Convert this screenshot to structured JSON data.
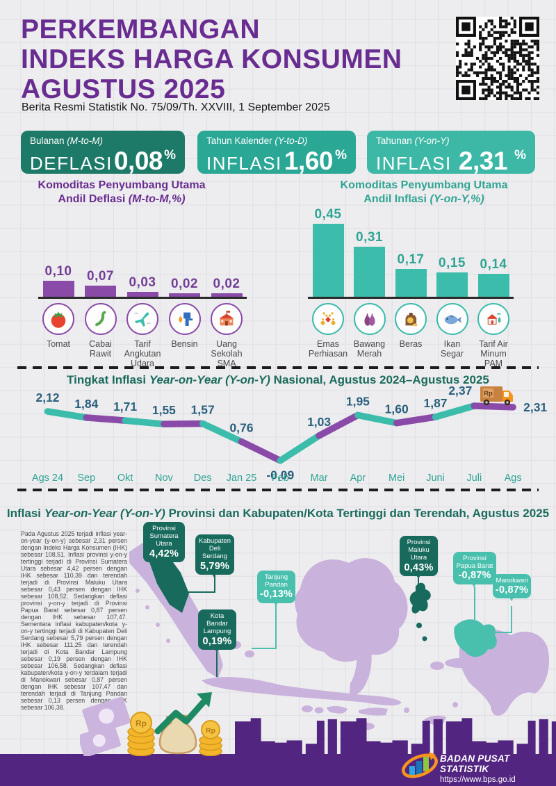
{
  "header": {
    "title_lines": [
      "PERKEMBANGAN",
      "INDEKS HARGA KONSUMEN",
      "AGUSTUS 2025"
    ],
    "subtitle": "Berita Resmi Statistik No. 75/09/Th. XXVIII, 1 September 2025"
  },
  "stat_boxes": [
    {
      "period": "Bulanan ",
      "period_detail": "(M-to-M)",
      "kind": "DEFLASI",
      "value": "0,08",
      "unit": "%",
      "color": "#1e7a68"
    },
    {
      "period": "Tahun Kalender ",
      "period_detail": "(Y-to-D)",
      "kind": "INFLASI",
      "value": "1,60",
      "unit": "%",
      "color": "#2ba795"
    },
    {
      "period": "Tahunan ",
      "period_detail": "(Y-on-Y)",
      "kind": "INFLASI",
      "value": "2,31",
      "unit": "%",
      "color": "#3eb8a6"
    }
  ],
  "deflasi_heading": {
    "line1": "Komoditas Penyumbang Utama",
    "line2_pre": "Andil Deflasi ",
    "line2_italic": "(M-to-M,%)"
  },
  "inflasi_heading": {
    "line1": "Komoditas Penyumbang Utama",
    "line2_pre": "Andil Inflasi ",
    "line2_italic": "(Y-on-Y,%)"
  },
  "chart_data": [
    {
      "type": "bar",
      "id": "andil-deflasi-mtm",
      "title": "Komoditas Penyumbang Utama Andil Deflasi (M-to-M,%)",
      "categories": [
        "Tomat",
        "Cabai Rawit",
        "Tarif Angkutan Udara",
        "Bensin",
        "Uang Sekolah SMA"
      ],
      "values": [
        0.1,
        0.07,
        0.03,
        0.02,
        0.02
      ],
      "value_labels": [
        "0,10",
        "0,07",
        "0,03",
        "0,02",
        "0,02"
      ],
      "icons": [
        "tomato-icon",
        "chili-icon",
        "airplane-icon",
        "fuel-icon",
        "school-icon"
      ],
      "bar_color": "#8a4ba8",
      "label_color": "#733d96",
      "circle_border": "#8a4ba8",
      "ylim": [
        0,
        0.12
      ],
      "grid": false
    },
    {
      "type": "bar",
      "id": "andil-inflasi-yoy",
      "title": "Komoditas Penyumbang Utama Andil Inflasi (Y-on-Y,%)",
      "categories": [
        "Emas Perhiasan",
        "Bawang Merah",
        "Beras",
        "Ikan Segar",
        "Tarif Air Minum PAM"
      ],
      "values": [
        0.45,
        0.31,
        0.17,
        0.15,
        0.14
      ],
      "value_labels": [
        "0,45",
        "0,31",
        "0,17",
        "0,15",
        "0,14"
      ],
      "icons": [
        "jewelry-icon",
        "shallot-icon",
        "rice-icon",
        "fish-icon",
        "water-icon"
      ],
      "bar_color": "#3cbcab",
      "label_color": "#2fa493",
      "circle_border": "#3cbcab",
      "ylim": [
        0,
        0.5
      ],
      "grid": false
    },
    {
      "type": "line",
      "id": "inflasi-yoy-nasional",
      "title_pre": "Tingkat Inflasi ",
      "title_italic": "Year-on-Year (Y-on-Y)",
      "title_post": " Nasional, Agustus 2024–Agustus 2025",
      "categories": [
        "Ags 24",
        "Sep",
        "Okt",
        "Nov",
        "Des",
        "Jan 25",
        "Feb",
        "Mar",
        "Apr",
        "Mei",
        "Juni",
        "Juli",
        "Ags"
      ],
      "values": [
        2.12,
        1.84,
        1.71,
        1.55,
        1.57,
        0.76,
        -0.09,
        1.03,
        1.95,
        1.6,
        1.87,
        2.37,
        2.31
      ],
      "value_labels": [
        "2,12",
        "1,84",
        "1,71",
        "1,55",
        "1,57",
        "0,76",
        "-0,09",
        "1,03",
        "1,95",
        "1,60",
        "1,87",
        "2,37",
        "2,31"
      ],
      "segment_colors": [
        "#3cbcab",
        "#8a4ba8"
      ],
      "label_color": "#2a607c",
      "month_color": "#2fa493",
      "ylim": [
        -0.5,
        2.6
      ],
      "grid": false,
      "legend": "none"
    }
  ],
  "map_section": {
    "title_pre": "Inflasi ",
    "title_italic": "Year-on-Year (Y-on-Y)",
    "title_post": " Provinsi dan Kabupaten/Kota Tertinggi dan Terendah, Agustus 2025",
    "paragraph": "Pada Agustus 2025 terjadi inflasi year-on-year (y-on-y) sebesar 2,31 persen dengan Indeks Harga Konsumen (IHK) sebesar 108,51. Inflasi provinsi y-on-y tertinggi terjadi di Provinsi Sumatera Utara sebesar 4,42 persen dengan IHK sebesar 110,39 dan terendah terjadi di Provinsi Maluku Utara sebesar 0,43 persen dengan IHK sebesar 108,52. Sedangkan deflasi provinsi y-on-y terjadi di Provinsi Papua Barat sebesar 0,87 persen dengan IHK sebesar 107,47. Sementara inflasi kabupaten/kota y-on-y tertinggi terjadi di Kabupaten Deli Serdang sebesar 5,79 persen dengan IHK sebesar 111,25 dan terendah terjadi di Kota Bandar Lampung sebesar 0,19 persen dengan IHK sebesar 106,58. Sedangkan deflasi kabupaten/kota y-on-y terdalam terjadi di Manokwari sebesar 0,87 persen dengan IHK sebesar 107,47 dan terendah terjadi di Tanjung Pandan sebesar 0,13 persen dengan IHK sebesar 106,38.",
    "callouts": [
      {
        "id": "sumatera-utara",
        "name_lines": [
          "Provinsi",
          "Sumatera",
          "Utara"
        ],
        "value": "4,42%",
        "tone": "dark"
      },
      {
        "id": "deli-serdang",
        "name_lines": [
          "Kabupaten",
          "Deli",
          "Serdang"
        ],
        "value": "5,79%",
        "tone": "dark"
      },
      {
        "id": "tanjung-pandan",
        "name_lines": [
          "Tanjung",
          "Pandan"
        ],
        "value": "-0,13%",
        "tone": "light"
      },
      {
        "id": "bandar-lampung",
        "name_lines": [
          "Kota",
          "Bandar",
          "Lampung"
        ],
        "value": "0,19%",
        "tone": "dark"
      },
      {
        "id": "maluku-utara",
        "name_lines": [
          "Provinsi",
          "Maluku",
          "Utara"
        ],
        "value": "0,43%",
        "tone": "dark"
      },
      {
        "id": "papua-barat",
        "name_lines": [
          "Provinsi",
          "Papua Barat"
        ],
        "value": "-0,87%",
        "tone": "light"
      },
      {
        "id": "manokwari",
        "name_lines": [
          "Manokwari"
        ],
        "value": "-0,87%",
        "tone": "light"
      }
    ]
  },
  "footer": {
    "org": "BADAN PUSAT STATISTIK",
    "url": "https://www.bps.go.id"
  },
  "colors": {
    "title_purple": "#692c90",
    "bar_purple": "#8a4ba8",
    "teal": "#3cbcab",
    "dark_teal": "#186a5c",
    "light_callout": "#49c0ae",
    "map_land": "#c9b2dc",
    "footer_purple": "#522580",
    "line_label": "#2a607c",
    "month_label": "#2fa493",
    "logo_orange": "#f7941e",
    "logo_blue": "#1b75bb",
    "logo_lightblue": "#29abe2",
    "logo_green": "#8dc63f"
  }
}
